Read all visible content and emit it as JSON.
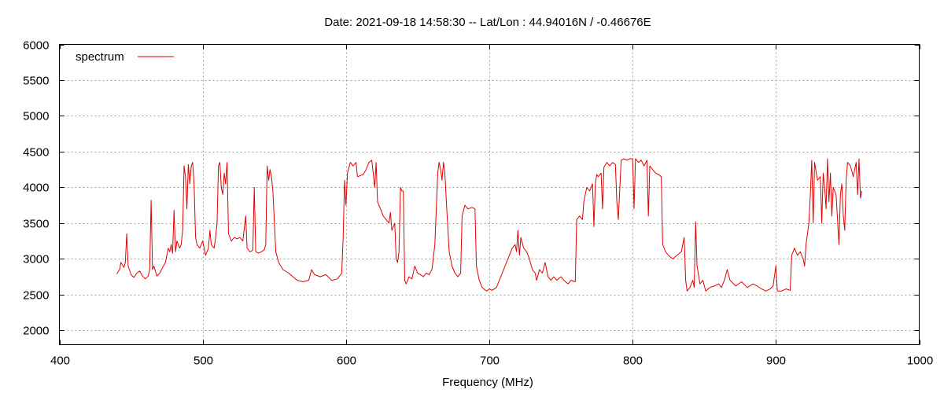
{
  "chart_data": {
    "type": "line",
    "title": "Date: 2021-09-18 14:58:30  --  Lat/Lon : 44.94016N / -0.46676E",
    "xlabel": "Frequency (MHz)",
    "ylabel": "",
    "xlim": [
      400,
      1000
    ],
    "ylim": [
      1800,
      6000
    ],
    "xticks": [
      400,
      500,
      600,
      700,
      800,
      900,
      1000
    ],
    "yticks": [
      2000,
      2500,
      3000,
      3500,
      4000,
      4500,
      5000,
      5500,
      6000
    ],
    "grid": true,
    "legend": "top-left",
    "series": [
      {
        "name": "spectrum",
        "color": "#e00000",
        "points": [
          [
            440,
            2790
          ],
          [
            442,
            2850
          ],
          [
            443,
            2950
          ],
          [
            445,
            2880
          ],
          [
            446,
            2950
          ],
          [
            447,
            3350
          ],
          [
            448,
            2900
          ],
          [
            450,
            2780
          ],
          [
            452,
            2740
          ],
          [
            454,
            2800
          ],
          [
            456,
            2830
          ],
          [
            458,
            2760
          ],
          [
            460,
            2720
          ],
          [
            462,
            2760
          ],
          [
            463,
            2850
          ],
          [
            464,
            3820
          ],
          [
            465,
            2850
          ],
          [
            466,
            2900
          ],
          [
            468,
            2760
          ],
          [
            470,
            2800
          ],
          [
            472,
            2880
          ],
          [
            474,
            2950
          ],
          [
            475,
            3050
          ],
          [
            476,
            3150
          ],
          [
            477,
            3100
          ],
          [
            478,
            3200
          ],
          [
            479,
            3080
          ],
          [
            480,
            3680
          ],
          [
            481,
            3100
          ],
          [
            482,
            3250
          ],
          [
            484,
            3150
          ],
          [
            485,
            3200
          ],
          [
            486,
            3400
          ],
          [
            487,
            4300
          ],
          [
            488,
            4150
          ],
          [
            489,
            3700
          ],
          [
            490,
            4320
          ],
          [
            491,
            4050
          ],
          [
            492,
            4300
          ],
          [
            493,
            4350
          ],
          [
            494,
            4050
          ],
          [
            495,
            3300
          ],
          [
            496,
            3200
          ],
          [
            498,
            3150
          ],
          [
            500,
            3250
          ],
          [
            502,
            3050
          ],
          [
            504,
            3150
          ],
          [
            505,
            3400
          ],
          [
            506,
            3200
          ],
          [
            508,
            3150
          ],
          [
            509,
            3300
          ],
          [
            510,
            3500
          ],
          [
            511,
            4300
          ],
          [
            512,
            4350
          ],
          [
            513,
            4000
          ],
          [
            514,
            3900
          ],
          [
            515,
            4200
          ],
          [
            516,
            4050
          ],
          [
            517,
            4350
          ],
          [
            518,
            3350
          ],
          [
            520,
            3250
          ],
          [
            522,
            3300
          ],
          [
            524,
            3280
          ],
          [
            526,
            3300
          ],
          [
            528,
            3250
          ],
          [
            530,
            3600
          ],
          [
            531,
            3150
          ],
          [
            533,
            3100
          ],
          [
            535,
            3120
          ],
          [
            536,
            4000
          ],
          [
            537,
            3100
          ],
          [
            539,
            3080
          ],
          [
            541,
            3100
          ],
          [
            543,
            3130
          ],
          [
            544,
            3200
          ],
          [
            545,
            4300
          ],
          [
            546,
            4100
          ],
          [
            547,
            4250
          ],
          [
            548,
            4150
          ],
          [
            549,
            3950
          ],
          [
            550,
            3500
          ],
          [
            551,
            3100
          ],
          [
            553,
            2950
          ],
          [
            556,
            2850
          ],
          [
            560,
            2800
          ],
          [
            563,
            2750
          ],
          [
            566,
            2700
          ],
          [
            570,
            2680
          ],
          [
            574,
            2700
          ],
          [
            576,
            2850
          ],
          [
            578,
            2780
          ],
          [
            582,
            2750
          ],
          [
            586,
            2780
          ],
          [
            590,
            2700
          ],
          [
            594,
            2720
          ],
          [
            597,
            2800
          ],
          [
            598,
            3300
          ],
          [
            599,
            4100
          ],
          [
            600,
            3750
          ],
          [
            601,
            4200
          ],
          [
            603,
            4350
          ],
          [
            605,
            4300
          ],
          [
            607,
            4350
          ],
          [
            608,
            4150
          ],
          [
            612,
            4180
          ],
          [
            614,
            4250
          ],
          [
            616,
            4350
          ],
          [
            618,
            4380
          ],
          [
            619,
            4200
          ],
          [
            620,
            4000
          ],
          [
            621,
            4350
          ],
          [
            622,
            3800
          ],
          [
            624,
            3700
          ],
          [
            626,
            3600
          ],
          [
            628,
            3550
          ],
          [
            630,
            3500
          ],
          [
            631,
            3650
          ],
          [
            632,
            3400
          ],
          [
            634,
            3500
          ],
          [
            635,
            3000
          ],
          [
            636,
            2950
          ],
          [
            637,
            3100
          ],
          [
            638,
            4000
          ],
          [
            639,
            3950
          ],
          [
            640,
            3950
          ],
          [
            641,
            2700
          ],
          [
            642,
            2650
          ],
          [
            644,
            2750
          ],
          [
            646,
            2720
          ],
          [
            648,
            2900
          ],
          [
            650,
            2800
          ],
          [
            652,
            2780
          ],
          [
            654,
            2750
          ],
          [
            656,
            2800
          ],
          [
            658,
            2780
          ],
          [
            660,
            2850
          ],
          [
            662,
            3200
          ],
          [
            664,
            4200
          ],
          [
            665,
            4350
          ],
          [
            666,
            4250
          ],
          [
            667,
            4100
          ],
          [
            668,
            4350
          ],
          [
            669,
            4200
          ],
          [
            670,
            3800
          ],
          [
            672,
            3100
          ],
          [
            674,
            2900
          ],
          [
            676,
            2800
          ],
          [
            678,
            2750
          ],
          [
            680,
            2800
          ],
          [
            681,
            3600
          ],
          [
            683,
            3750
          ],
          [
            685,
            3700
          ],
          [
            688,
            3720
          ],
          [
            690,
            3700
          ],
          [
            691,
            2900
          ],
          [
            693,
            2700
          ],
          [
            695,
            2600
          ],
          [
            698,
            2550
          ],
          [
            700,
            2580
          ],
          [
            702,
            2560
          ],
          [
            705,
            2600
          ],
          [
            708,
            2750
          ],
          [
            711,
            2900
          ],
          [
            714,
            3050
          ],
          [
            716,
            3150
          ],
          [
            718,
            3200
          ],
          [
            719,
            3100
          ],
          [
            720,
            3400
          ],
          [
            721,
            3050
          ],
          [
            722,
            3300
          ],
          [
            724,
            3150
          ],
          [
            726,
            3100
          ],
          [
            728,
            3000
          ],
          [
            730,
            2850
          ],
          [
            732,
            2800
          ],
          [
            733,
            2700
          ],
          [
            735,
            2850
          ],
          [
            737,
            2800
          ],
          [
            739,
            2950
          ],
          [
            741,
            2750
          ],
          [
            743,
            2700
          ],
          [
            745,
            2750
          ],
          [
            747,
            2700
          ],
          [
            750,
            2750
          ],
          [
            752,
            2700
          ],
          [
            755,
            2650
          ],
          [
            757,
            2700
          ],
          [
            760,
            2680
          ],
          [
            761,
            3550
          ],
          [
            763,
            3600
          ],
          [
            765,
            3550
          ],
          [
            766,
            3800
          ],
          [
            768,
            4000
          ],
          [
            770,
            3950
          ],
          [
            772,
            4050
          ],
          [
            773,
            3450
          ],
          [
            774,
            4050
          ],
          [
            775,
            4180
          ],
          [
            776,
            4150
          ],
          [
            778,
            4200
          ],
          [
            779,
            3700
          ],
          [
            780,
            4280
          ],
          [
            782,
            4350
          ],
          [
            784,
            4300
          ],
          [
            786,
            4350
          ],
          [
            788,
            4320
          ],
          [
            789,
            3800
          ],
          [
            790,
            3550
          ],
          [
            792,
            4380
          ],
          [
            794,
            4400
          ],
          [
            796,
            4380
          ],
          [
            798,
            4400
          ],
          [
            800,
            4400
          ],
          [
            801,
            3700
          ],
          [
            802,
            4400
          ],
          [
            804,
            4350
          ],
          [
            806,
            4380
          ],
          [
            808,
            4300
          ],
          [
            810,
            4380
          ],
          [
            811,
            3600
          ],
          [
            812,
            4300
          ],
          [
            814,
            4250
          ],
          [
            816,
            4200
          ],
          [
            818,
            4180
          ],
          [
            820,
            4150
          ],
          [
            821,
            3200
          ],
          [
            823,
            3100
          ],
          [
            825,
            3050
          ],
          [
            828,
            3000
          ],
          [
            831,
            3050
          ],
          [
            834,
            3100
          ],
          [
            836,
            3300
          ],
          [
            837,
            2700
          ],
          [
            838,
            2550
          ],
          [
            840,
            2600
          ],
          [
            842,
            2700
          ],
          [
            843,
            2600
          ],
          [
            844,
            3520
          ],
          [
            845,
            2900
          ],
          [
            847,
            2650
          ],
          [
            849,
            2700
          ],
          [
            851,
            2550
          ],
          [
            854,
            2600
          ],
          [
            857,
            2620
          ],
          [
            860,
            2650
          ],
          [
            862,
            2600
          ],
          [
            864,
            2700
          ],
          [
            866,
            2850
          ],
          [
            868,
            2700
          ],
          [
            872,
            2620
          ],
          [
            876,
            2680
          ],
          [
            880,
            2600
          ],
          [
            884,
            2650
          ],
          [
            887,
            2620
          ],
          [
            890,
            2580
          ],
          [
            893,
            2550
          ],
          [
            896,
            2580
          ],
          [
            898,
            2620
          ],
          [
            900,
            2900
          ],
          [
            901,
            2550
          ],
          [
            904,
            2550
          ],
          [
            907,
            2580
          ],
          [
            910,
            2560
          ],
          [
            911,
            3050
          ],
          [
            913,
            3150
          ],
          [
            915,
            3050
          ],
          [
            917,
            3100
          ],
          [
            919,
            3000
          ],
          [
            920,
            2900
          ],
          [
            921,
            3200
          ],
          [
            923,
            3500
          ],
          [
            924,
            3900
          ],
          [
            925,
            4380
          ],
          [
            926,
            3500
          ],
          [
            927,
            4350
          ],
          [
            929,
            4100
          ],
          [
            931,
            4150
          ],
          [
            932,
            3500
          ],
          [
            933,
            4200
          ],
          [
            934,
            4000
          ],
          [
            935,
            3700
          ],
          [
            936,
            4400
          ],
          [
            937,
            3800
          ],
          [
            938,
            4200
          ],
          [
            939,
            3600
          ],
          [
            940,
            4000
          ],
          [
            942,
            3900
          ],
          [
            944,
            3200
          ],
          [
            945,
            3900
          ],
          [
            946,
            4050
          ],
          [
            947,
            3600
          ],
          [
            948,
            3400
          ],
          [
            949,
            4100
          ],
          [
            950,
            4350
          ],
          [
            952,
            4300
          ],
          [
            954,
            4150
          ],
          [
            956,
            4350
          ],
          [
            957,
            3900
          ],
          [
            958,
            4400
          ],
          [
            959,
            3850
          ],
          [
            960,
            3950
          ]
        ]
      }
    ]
  }
}
